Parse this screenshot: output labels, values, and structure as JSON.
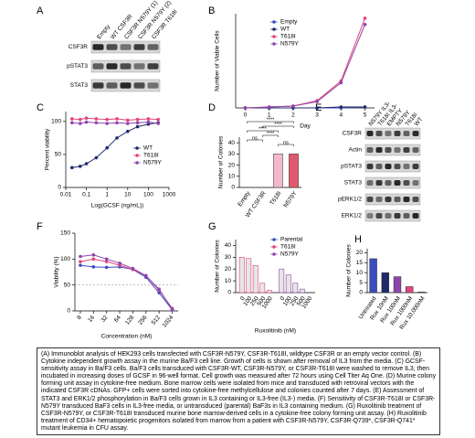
{
  "panels": [
    "A",
    "B",
    "C",
    "D",
    "E",
    "F",
    "G",
    "H"
  ],
  "blot_a": {
    "lanes": [
      "Empty",
      "WT CSF3R",
      "CSF3R N579Y (1)",
      "CSF3R N579Y (2)",
      "CSF3R T618I"
    ],
    "rows": [
      "CSF3R",
      "pSTAT3",
      "STAT3"
    ]
  },
  "blot_e": {
    "lanes": [
      "N579Y IL3-",
      "T618I IL3-",
      "EMPTY",
      "N579Y",
      "T618I",
      "WT"
    ],
    "rows": [
      "CSF3R",
      "Actin",
      "pSTAT3",
      "STAT3",
      "pERK1/2",
      "ERK1/2"
    ]
  },
  "chart_data": [
    {
      "type": "line",
      "xlabel": "Day",
      "ylabel": "Number of Viable Cells",
      "x": [
        0,
        1,
        2,
        3,
        4,
        5
      ],
      "xlim": [
        -0.4,
        5.4
      ],
      "xticks": [
        0,
        1,
        2,
        3,
        4,
        5
      ],
      "ylim": [
        0,
        1.05
      ],
      "series": [
        {
          "name": "Empty",
          "color": "#3b4cc0",
          "values": [
            0,
            0,
            0,
            0,
            0,
            0.01
          ]
        },
        {
          "name": "WT",
          "color": "#1f2a6b",
          "values": [
            0,
            0,
            0,
            0,
            0.01,
            0.01
          ]
        },
        {
          "name": "T618I",
          "color": "#e0457b",
          "values": [
            0,
            0.01,
            0.02,
            0.08,
            0.3,
            1.0
          ]
        },
        {
          "name": "N579Y",
          "color": "#8e44ad",
          "values": [
            0,
            0.01,
            0.02,
            0.07,
            0.28,
            0.93
          ]
        }
      ]
    },
    {
      "type": "scatter",
      "log_x": true,
      "xlabel": "Log(GCSF (ng/mL))",
      "ylabel": "Percent viability",
      "x": [
        0.02,
        0.05,
        0.1,
        0.3,
        1,
        3,
        10,
        30,
        100,
        300
      ],
      "xlim": [
        0.01,
        1000
      ],
      "xticks": [
        0.01,
        0.1,
        1,
        10,
        100,
        1000
      ],
      "ylim": [
        0,
        115
      ],
      "yticks": [
        0,
        50,
        100
      ],
      "series": [
        {
          "name": "WT",
          "color": "#1f2a6b",
          "values": [
            30,
            32,
            36,
            45,
            60,
            75,
            85,
            92,
            96,
            98
          ]
        },
        {
          "name": "T618I",
          "color": "#e0457b",
          "values": [
            104,
            103,
            105,
            104,
            103,
            104,
            102,
            103,
            104,
            103
          ]
        },
        {
          "name": "N579Y",
          "color": "#8e44ad",
          "values": [
            98,
            97,
            99,
            98,
            97,
            98,
            97,
            98,
            99,
            97
          ]
        }
      ]
    },
    {
      "type": "bar",
      "ylabel": "Number of Colonies",
      "categories": [
        "Empty",
        "WT CSF3R",
        "T618I",
        "N579Y"
      ],
      "values": [
        0,
        0,
        30,
        30
      ],
      "colors": [
        "#ffffff",
        "#ffffff",
        "#f2b8cc",
        "#e05a6f"
      ],
      "ylim": [
        0,
        45
      ],
      "yticks": [
        0,
        10,
        20,
        30,
        40
      ],
      "annotations": [
        "****",
        "****",
        "ns",
        "****",
        "****",
        "ns"
      ]
    },
    {
      "type": "line",
      "log_x": true,
      "xlabel": "Concentration (nM)",
      "ylabel": "Viability (%)",
      "x": [
        8,
        16,
        32,
        64,
        128,
        256,
        512,
        1024
      ],
      "xlim": [
        6,
        1400
      ],
      "xticks": [
        8,
        16,
        32,
        64,
        128,
        256,
        512,
        1024
      ],
      "ylim": [
        0,
        150
      ],
      "yticks": [
        0,
        50,
        100,
        150
      ],
      "reference_line": 50,
      "series": [
        {
          "name": "Parental",
          "color": "#3b4cc0",
          "values": [
            88,
            85,
            84,
            85,
            80,
            65,
            35,
            2
          ]
        },
        {
          "name": "T618I",
          "color": "#e0457b",
          "values": [
            95,
            100,
            95,
            88,
            80,
            68,
            40,
            5
          ]
        },
        {
          "name": "N579Y",
          "color": "#8e44ad",
          "values": [
            105,
            108,
            100,
            92,
            82,
            68,
            42,
            3
          ]
        }
      ]
    },
    {
      "type": "grouped_bar",
      "xlabel": "Ruxolitinib (nM)",
      "ylabel": "Number of Colonies",
      "categories": [
        "0",
        "100",
        "250",
        "500",
        "1000"
      ],
      "ylim": [
        0,
        45
      ],
      "yticks": [
        0,
        10,
        20,
        30,
        40
      ],
      "series": [
        {
          "name": "T618I",
          "color": "#e0457b",
          "values": [
            30,
            29,
            23,
            8,
            2
          ]
        },
        {
          "name": "N579Y",
          "color": "#8e44ad",
          "values": [
            20,
            15,
            8,
            3,
            0
          ]
        }
      ]
    },
    {
      "type": "bar",
      "ylabel": "Number of Colonies",
      "categories": [
        "Untreated",
        "Rux 10nM",
        "Rux 100nM",
        "Rux 1000nM",
        "Rux 10,000nM"
      ],
      "values": [
        17,
        10,
        8,
        3,
        0.3
      ],
      "colors": [
        "#3b4cc0",
        "#1f2a6b",
        "#8e44ad",
        "#e0457b",
        "#d62728"
      ],
      "ylim": [
        0,
        22
      ],
      "yticks": [
        0,
        5,
        10,
        15,
        20
      ]
    }
  ],
  "caption": "(A) Immunoblot analysis of HEK293 cells transfected with CSF3R-N579Y, CSF3R-T618I, wildtype CSF3R or an empty vector control. (B) Cytokine independent growth assay in the murine Ba/F3 cell line. Growth of cells is shown after removal of IL3 from the media. (C) GCSF-sensitivity assay in Ba/F3 cells. Ba/F3 cells transduced with CSF3R-WT, CSF3R-N579Y, or CSF3R-T618I were washed to remove IL3, then incubated in increasing doses of GCSF in 96-well format. Cell growth was measured after 72 hours using Cell Titer Aq One. (D) Murine colony forming unit assay in cytokine-free medium. Bone marrow cells were isolated from mice and transduced with retroviral vectors with the indicated CSF3R cDNAs. GFP+ cells were sorted into cytokine-free methylcellulose and colonies counted after 7 days. (E) Assessment of STAT3 and ERK1/2 phosphorylation in Ba/F3 cells grown in IL3 containing or IL3-free (IL3-) media. (F) Sensitivity of CSF3R-T618I or CSF3R-N579Y transduced BaF3 cells in IL3-free media, or untransduced (parental) BaF3s in IL3 containing medium. (G) Ruxolitinib treatment of CSF3R-N579Y, or CSF3R-T618I transduced murine bone marrow-derived cells in a cytokine-free colony forming unit assay. (H) Ruxolitinib treatment of CD34+ hematopoietic progenitors isolated from marrow from a patient with CSF3R-N579Y, CSF3R-Q739*, CSF3R-Q741* mutant leukemia in CFU assay."
}
